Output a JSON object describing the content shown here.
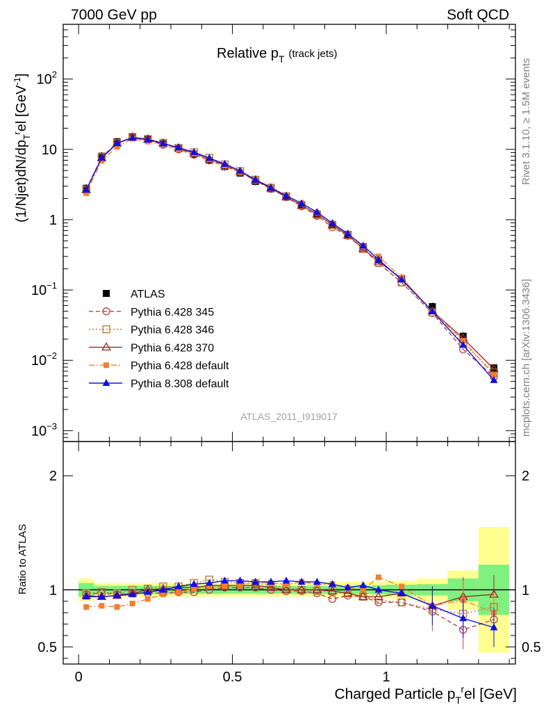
{
  "header": {
    "left": "7000 GeV pp",
    "right": "Soft QCD"
  },
  "side_labels": {
    "rivet": "Rivet 3.1.10, ≥ 1.5M events",
    "mcplots": "mcplots.cern.ch [arXiv:1306.3436]"
  },
  "chart_data": [
    {
      "type": "scatter",
      "panel": "main",
      "title": "Relative p",
      "title_sub": "T",
      "title_note": "(track jets)",
      "watermark": "ATLAS_2011_I919017",
      "ylabel": "(1/Njet)dN/dp",
      "ylabel_sub": "T",
      "ylabel_sup": "r",
      "ylabel_tail": "el [GeV",
      "ylabel_tail_sup": "-1",
      "ylabel_close": "]",
      "yscale": "log",
      "ylim": [
        0.0007,
        600
      ],
      "xlim": [
        -0.05,
        1.42
      ],
      "y_ticks": [
        {
          "v": 0.001,
          "base": "10",
          "exp": "−3"
        },
        {
          "v": 0.01,
          "base": "10",
          "exp": "−2"
        },
        {
          "v": 0.1,
          "base": "10",
          "exp": "−1"
        },
        {
          "v": 1,
          "base": "1",
          "exp": ""
        },
        {
          "v": 10,
          "base": "10",
          "exp": ""
        },
        {
          "v": 100,
          "base": "10",
          "exp": "2"
        }
      ],
      "x": [
        0.025,
        0.075,
        0.125,
        0.175,
        0.225,
        0.275,
        0.325,
        0.375,
        0.425,
        0.475,
        0.525,
        0.575,
        0.625,
        0.675,
        0.725,
        0.775,
        0.825,
        0.875,
        0.925,
        0.975,
        1.05,
        1.15,
        1.25,
        1.35
      ],
      "series": [
        {
          "name": "ATLAS",
          "color": "#000000",
          "marker": "filled-square",
          "line": "none",
          "values": [
            2.8,
            8.0,
            12.8,
            15.2,
            14.0,
            12.0,
            10.2,
            8.6,
            7.0,
            5.7,
            4.6,
            3.5,
            2.75,
            2.1,
            1.6,
            1.2,
            0.85,
            0.62,
            0.41,
            0.27,
            0.145,
            0.058,
            0.022,
            0.0078
          ]
        },
        {
          "name": "Pythia 6.428 345",
          "color": "#b04050",
          "marker": "open-circle",
          "line": "dashed",
          "values": [
            2.7,
            7.8,
            12.3,
            14.8,
            13.6,
            11.6,
            10.0,
            8.4,
            7.0,
            5.8,
            4.7,
            3.6,
            2.75,
            2.1,
            1.55,
            1.13,
            0.78,
            0.59,
            0.385,
            0.24,
            0.128,
            0.047,
            0.0143,
            0.0058
          ]
        },
        {
          "name": "Pythia 6.428 346",
          "color": "#b07830",
          "marker": "open-square",
          "line": "dotted",
          "values": [
            2.7,
            7.8,
            12.3,
            15.0,
            14.0,
            12.4,
            10.5,
            9.1,
            7.6,
            6.1,
            4.9,
            3.7,
            2.85,
            2.15,
            1.6,
            1.18,
            0.84,
            0.6,
            0.385,
            0.245,
            0.128,
            0.048,
            0.0175,
            0.0067
          ]
        },
        {
          "name": "Pythia 6.428 370",
          "color": "#a02828",
          "marker": "open-triangle",
          "line": "solid",
          "values": [
            2.65,
            7.5,
            12.2,
            14.8,
            14.0,
            12.2,
            10.4,
            8.8,
            7.3,
            5.95,
            4.8,
            3.65,
            2.8,
            2.1,
            1.6,
            1.2,
            0.84,
            0.6,
            0.385,
            0.255,
            0.145,
            0.05,
            0.0206,
            0.0075
          ]
        },
        {
          "name": "Pythia 6.428 default",
          "color": "#f08030",
          "marker": "filled-small-square",
          "line": "dashdot",
          "values": [
            2.38,
            6.9,
            10.9,
            14.2,
            12.9,
            11.6,
            10.0,
            8.7,
            7.2,
            5.9,
            4.8,
            3.75,
            2.9,
            2.2,
            1.72,
            1.26,
            0.89,
            0.63,
            0.41,
            0.3,
            0.15,
            0.05,
            0.019,
            0.0062
          ]
        },
        {
          "name": "Pythia 8.308 default",
          "color": "#1010e0",
          "marker": "filled-triangle",
          "line": "solid",
          "values": [
            2.65,
            7.55,
            12.2,
            14.6,
            13.7,
            12.1,
            10.6,
            9.1,
            7.5,
            6.2,
            4.95,
            3.7,
            2.85,
            2.2,
            1.7,
            1.28,
            0.89,
            0.63,
            0.425,
            0.27,
            0.14,
            0.0498,
            0.0165,
            0.0052
          ]
        }
      ]
    },
    {
      "type": "scatter",
      "panel": "ratio",
      "ylabel": "Ratio to ATLAS",
      "xlabel": "Charged Particle p",
      "xlabel_sub": "T",
      "xlabel_sup": "r",
      "xlabel_tail": "el [GeV]",
      "ylim": [
        0.35,
        2.3
      ],
      "xlim": [
        -0.05,
        1.42
      ],
      "y_ticks": [
        "0.5",
        "1",
        "2"
      ],
      "x_ticks": [
        "0",
        "0.5",
        "1"
      ],
      "bin_edges": [
        0.0,
        0.05,
        0.1,
        0.15,
        0.2,
        0.25,
        0.3,
        0.35,
        0.4,
        0.45,
        0.5,
        0.55,
        0.6,
        0.65,
        0.7,
        0.75,
        0.8,
        0.85,
        0.9,
        0.95,
        1.0,
        1.1,
        1.2,
        1.3,
        1.4
      ],
      "bands": {
        "stat_color": "#80f080",
        "syst_color": "#ffff90",
        "inner": [
          0.06,
          0.035,
          0.035,
          0.035,
          0.035,
          0.035,
          0.035,
          0.035,
          0.035,
          0.035,
          0.035,
          0.035,
          0.035,
          0.035,
          0.035,
          0.035,
          0.035,
          0.035,
          0.035,
          0.04,
          0.045,
          0.05,
          0.1,
          0.22
        ],
        "outer": [
          0.1,
          0.06,
          0.06,
          0.06,
          0.06,
          0.06,
          0.06,
          0.06,
          0.06,
          0.06,
          0.06,
          0.06,
          0.06,
          0.06,
          0.06,
          0.06,
          0.07,
          0.07,
          0.07,
          0.07,
          0.08,
          0.1,
          0.17,
          0.55
        ]
      },
      "x": [
        0.025,
        0.075,
        0.125,
        0.175,
        0.225,
        0.275,
        0.325,
        0.375,
        0.425,
        0.475,
        0.525,
        0.575,
        0.625,
        0.675,
        0.725,
        0.775,
        0.825,
        0.875,
        0.925,
        0.975,
        1.05,
        1.15,
        1.25,
        1.35
      ],
      "series": [
        {
          "name": "Pythia 6.428 345",
          "color": "#b04050",
          "marker": "open-circle",
          "line": "dashed",
          "values": [
            0.96,
            0.97,
            0.96,
            0.97,
            0.97,
            0.97,
            0.98,
            0.98,
            1.0,
            1.02,
            1.02,
            1.02,
            1.0,
            0.99,
            0.99,
            0.97,
            0.92,
            0.95,
            0.94,
            0.89,
            0.89,
            0.81,
            0.65,
            0.74
          ]
        },
        {
          "name": "Pythia 6.428 346",
          "color": "#b07830",
          "marker": "open-square",
          "line": "dotted",
          "values": [
            0.97,
            0.98,
            0.97,
            1.0,
            1.01,
            1.03,
            1.03,
            1.06,
            1.09,
            1.07,
            1.06,
            1.06,
            1.04,
            1.02,
            1.0,
            0.99,
            0.99,
            0.97,
            0.94,
            0.91,
            0.89,
            0.83,
            0.79,
            0.85
          ]
        },
        {
          "name": "Pythia 6.428 370",
          "color": "#a02828",
          "marker": "open-triangle",
          "line": "solid",
          "values": [
            0.95,
            0.94,
            0.95,
            0.97,
            1.0,
            1.01,
            1.02,
            1.02,
            1.04,
            1.04,
            1.04,
            1.04,
            1.02,
            1.0,
            1.0,
            1.0,
            0.99,
            0.97,
            0.94,
            0.94,
            0.97,
            0.86,
            0.94,
            0.96
          ]
        },
        {
          "name": "Pythia 6.428 default",
          "color": "#f08030",
          "marker": "filled-small-square",
          "line": "dashdot",
          "values": [
            0.85,
            0.86,
            0.85,
            0.88,
            0.92,
            0.96,
            0.98,
            1.01,
            1.03,
            1.03,
            1.04,
            1.07,
            1.06,
            1.05,
            1.07,
            1.05,
            1.05,
            1.02,
            1.0,
            1.11,
            1.03,
            0.86,
            0.91,
            0.8
          ]
        },
        {
          "name": "Pythia 8.308 default",
          "color": "#1010e0",
          "marker": "filled-triangle",
          "line": "solid",
          "values": [
            0.94,
            0.94,
            0.95,
            0.96,
            0.98,
            1.0,
            1.03,
            1.05,
            1.06,
            1.08,
            1.08,
            1.07,
            1.07,
            1.08,
            1.07,
            1.07,
            1.05,
            1.02,
            1.04,
            1.0,
            0.97,
            0.86,
            0.75,
            0.67
          ]
        }
      ]
    }
  ]
}
